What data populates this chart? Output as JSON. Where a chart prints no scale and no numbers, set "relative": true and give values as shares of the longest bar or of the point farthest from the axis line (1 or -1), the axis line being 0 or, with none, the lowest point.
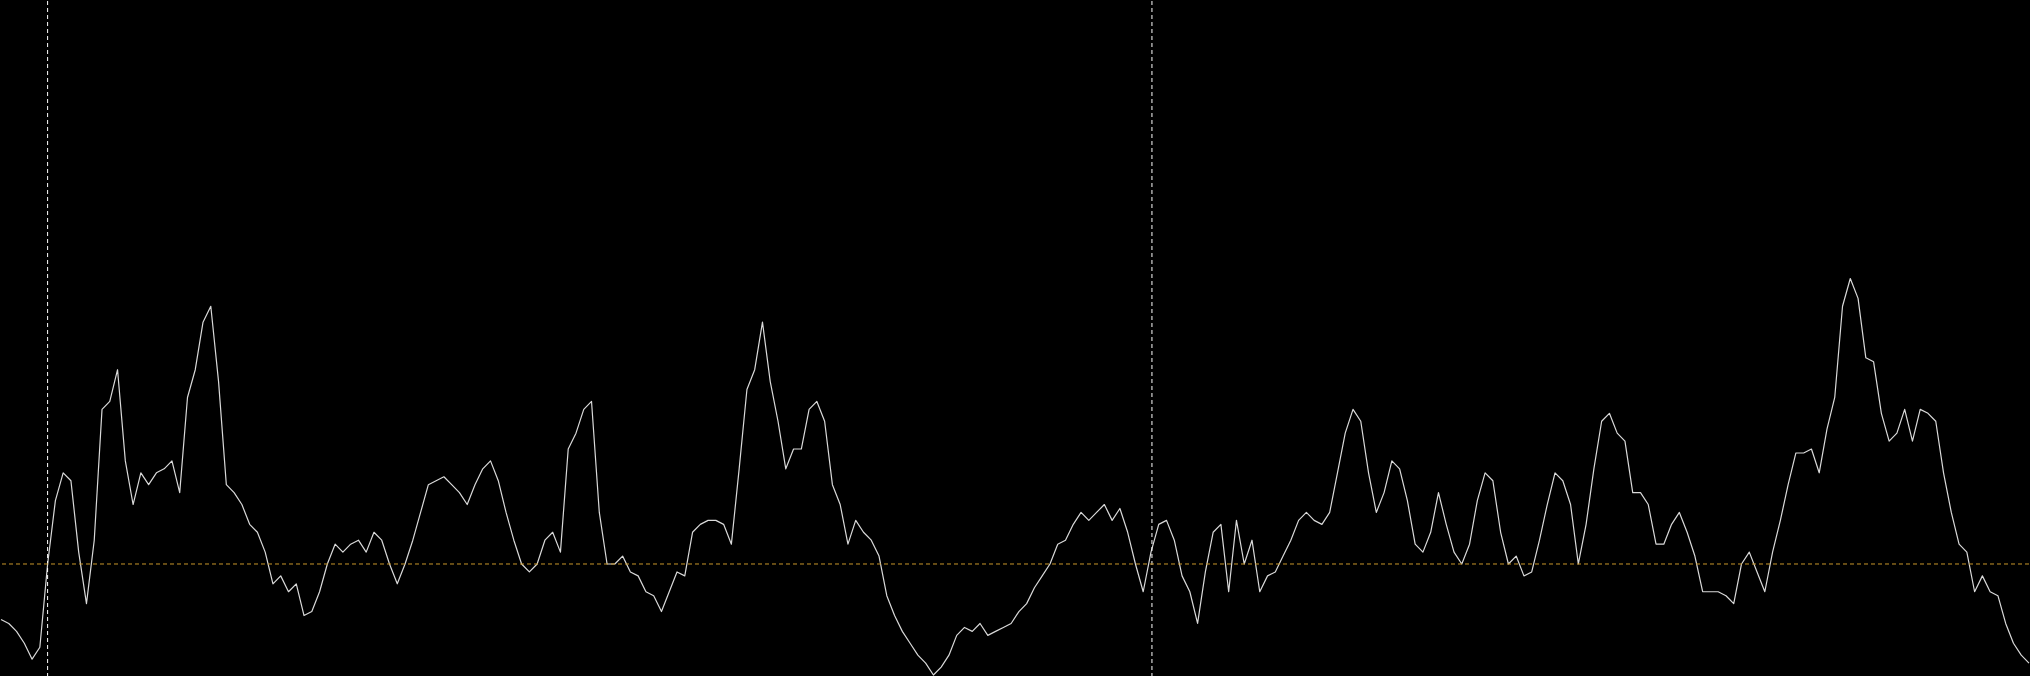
{
  "chart_data": {
    "type": "line",
    "relative": true,
    "categories": [
      null,
      null,
      null,
      null,
      null,
      null,
      null,
      null,
      null,
      null,
      null,
      null,
      null,
      null,
      null,
      null,
      null,
      null,
      null,
      null,
      null,
      null,
      null,
      null,
      null,
      null,
      null,
      null,
      null,
      null,
      null,
      null,
      null,
      null,
      null,
      null,
      null,
      null,
      null,
      null,
      null,
      null,
      null,
      null,
      null,
      null,
      null,
      null,
      null,
      null,
      null,
      null,
      null,
      null,
      null,
      null,
      null,
      null,
      null,
      null,
      null,
      null,
      null,
      null,
      null,
      null,
      null,
      null,
      null,
      null,
      null,
      null,
      null,
      null,
      null,
      null,
      null,
      null,
      null,
      null,
      null,
      null,
      null,
      null,
      null,
      null,
      null,
      null,
      null,
      null,
      null,
      null,
      null,
      null,
      null,
      null,
      null,
      null,
      null,
      null,
      null,
      null,
      null,
      null,
      null,
      null,
      null,
      null,
      null,
      null,
      null,
      null,
      null,
      null,
      null,
      null,
      null,
      null,
      null,
      null,
      null,
      null,
      null,
      null,
      null,
      null,
      null,
      null,
      null,
      null,
      null,
      null,
      null,
      null,
      null,
      null,
      null,
      null,
      null,
      null,
      null,
      null,
      null,
      null,
      null,
      null,
      null,
      null,
      null,
      null,
      null,
      null,
      null,
      null,
      null,
      null,
      null,
      null,
      null,
      null,
      null,
      null,
      null,
      null,
      null,
      null,
      null,
      null,
      null,
      null,
      null,
      null,
      null,
      null,
      null,
      null,
      null,
      null,
      null,
      null,
      null,
      null,
      null,
      null,
      null,
      null,
      null,
      null,
      null,
      null,
      null,
      null,
      null,
      null,
      null,
      null,
      null,
      null,
      null,
      null,
      null,
      null,
      null,
      null,
      null,
      null,
      null,
      null,
      null,
      null,
      null,
      null,
      null,
      null,
      null,
      null,
      null,
      null,
      null,
      null,
      null,
      null,
      null,
      null,
      null,
      null,
      null,
      null,
      null,
      null,
      null,
      null,
      null,
      null,
      null,
      null,
      null,
      null,
      null,
      null,
      null,
      null,
      null,
      null,
      null,
      null,
      null,
      null,
      null,
      null,
      null,
      null,
      null,
      null,
      null,
      null,
      null,
      null,
      null,
      null,
      null,
      null
    ],
    "series": [
      {
        "color": "#d9d9d9",
        "values": [
          0.14,
          0.13,
          0.11,
          0.08,
          0.04,
          0.07,
          0.28,
          0.44,
          0.51,
          0.49,
          0.31,
          0.18,
          0.34,
          0.67,
          0.69,
          0.77,
          0.54,
          0.43,
          0.51,
          0.48,
          0.51,
          0.52,
          0.54,
          0.46,
          0.7,
          0.77,
          0.89,
          0.93,
          0.74,
          0.48,
          0.46,
          0.43,
          0.38,
          0.36,
          0.31,
          0.23,
          0.25,
          0.21,
          0.23,
          0.15,
          0.16,
          0.21,
          0.28,
          0.33,
          0.31,
          0.33,
          0.34,
          0.31,
          0.36,
          0.34,
          0.28,
          0.23,
          0.28,
          0.34,
          0.41,
          0.48,
          0.49,
          0.5,
          0.48,
          0.46,
          0.43,
          0.48,
          0.52,
          0.54,
          0.49,
          0.41,
          0.34,
          0.28,
          0.26,
          0.28,
          0.34,
          0.36,
          0.31,
          0.57,
          0.61,
          0.67,
          0.69,
          0.41,
          0.28,
          0.28,
          0.3,
          0.26,
          0.25,
          0.21,
          0.2,
          0.16,
          0.21,
          0.26,
          0.25,
          0.36,
          0.38,
          0.39,
          0.39,
          0.38,
          0.33,
          0.52,
          0.72,
          0.77,
          0.89,
          0.74,
          0.64,
          0.52,
          0.57,
          0.57,
          0.67,
          0.69,
          0.64,
          0.48,
          0.43,
          0.33,
          0.39,
          0.36,
          0.34,
          0.3,
          0.2,
          0.15,
          0.11,
          0.08,
          0.05,
          0.03,
          0,
          0.02,
          0.05,
          0.1,
          0.12,
          0.11,
          0.13,
          0.1,
          0.11,
          0.12,
          0.13,
          0.16,
          0.18,
          0.22,
          0.25,
          0.28,
          0.33,
          0.34,
          0.38,
          0.41,
          0.39,
          0.41,
          0.43,
          0.39,
          0.42,
          0.36,
          0.28,
          0.21,
          0.31,
          0.38,
          0.39,
          0.34,
          0.25,
          0.21,
          0.13,
          0.26,
          0.36,
          0.38,
          0.21,
          0.39,
          0.28,
          0.34,
          0.21,
          0.25,
          0.26,
          0.3,
          0.34,
          0.39,
          0.41,
          0.39,
          0.38,
          0.41,
          0.51,
          0.61,
          0.67,
          0.64,
          0.51,
          0.41,
          0.46,
          0.54,
          0.52,
          0.44,
          0.33,
          0.31,
          0.36,
          0.46,
          0.38,
          0.31,
          0.28,
          0.33,
          0.44,
          0.51,
          0.49,
          0.36,
          0.28,
          0.3,
          0.25,
          0.26,
          0.34,
          0.43,
          0.51,
          0.49,
          0.43,
          0.28,
          0.38,
          0.52,
          0.64,
          0.66,
          0.61,
          0.59,
          0.46,
          0.46,
          0.43,
          0.33,
          0.33,
          0.38,
          0.41,
          0.36,
          0.3,
          0.21,
          0.21,
          0.21,
          0.2,
          0.18,
          0.28,
          0.31,
          0.26,
          0.21,
          0.31,
          0.39,
          0.48,
          0.56,
          0.56,
          0.57,
          0.51,
          0.62,
          0.7,
          0.93,
          1,
          0.95,
          0.8,
          0.79,
          0.66,
          0.59,
          0.61,
          0.67,
          0.59,
          0.67,
          0.66,
          0.64,
          0.51,
          0.41,
          0.33,
          0.31,
          0.21,
          0.25,
          0.21,
          0.2,
          0.13,
          0.08,
          0.05,
          0.03
        ]
      }
    ],
    "ref_lines": [
      {
        "axis": "y",
        "value": 0.28,
        "label": null,
        "color": "#c8962a",
        "line_style": "dashed"
      }
    ]
  }
}
